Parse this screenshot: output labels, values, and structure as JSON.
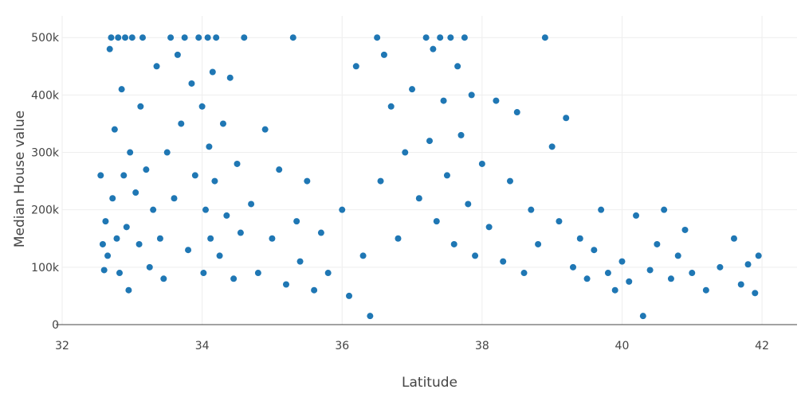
{
  "chart_data": {
    "type": "scatter",
    "xlabel": "Latitude",
    "ylabel": "Median House value",
    "xlim": [
      32,
      42.5
    ],
    "ylim": [
      0,
      510000
    ],
    "x_ticks": [
      {
        "value": 32,
        "label": "32"
      },
      {
        "value": 34,
        "label": "34"
      },
      {
        "value": 36,
        "label": "36"
      },
      {
        "value": 38,
        "label": "38"
      },
      {
        "value": 40,
        "label": "40"
      },
      {
        "value": 42,
        "label": "42"
      }
    ],
    "y_ticks": [
      {
        "value": 0,
        "label": "0"
      },
      {
        "value": 100000,
        "label": "100k"
      },
      {
        "value": 200000,
        "label": "200k"
      },
      {
        "value": 300000,
        "label": "300k"
      },
      {
        "value": 400000,
        "label": "400k"
      },
      {
        "value": 500000,
        "label": "500k"
      }
    ],
    "grid": true,
    "marker_color": "#1f77b4",
    "points": [
      [
        32.55,
        260000
      ],
      [
        32.58,
        140000
      ],
      [
        32.6,
        95000
      ],
      [
        32.62,
        180000
      ],
      [
        32.65,
        120000
      ],
      [
        32.68,
        480000
      ],
      [
        32.7,
        500000
      ],
      [
        32.72,
        220000
      ],
      [
        32.75,
        340000
      ],
      [
        32.78,
        150000
      ],
      [
        32.8,
        500000
      ],
      [
        32.82,
        90000
      ],
      [
        32.85,
        410000
      ],
      [
        32.88,
        260000
      ],
      [
        32.9,
        500000
      ],
      [
        32.92,
        170000
      ],
      [
        32.95,
        60000
      ],
      [
        32.97,
        300000
      ],
      [
        33.0,
        500000
      ],
      [
        33.05,
        230000
      ],
      [
        33.1,
        140000
      ],
      [
        33.12,
        380000
      ],
      [
        33.15,
        500000
      ],
      [
        33.2,
        270000
      ],
      [
        33.25,
        100000
      ],
      [
        33.3,
        200000
      ],
      [
        33.35,
        450000
      ],
      [
        33.4,
        150000
      ],
      [
        33.45,
        80000
      ],
      [
        33.5,
        300000
      ],
      [
        33.55,
        500000
      ],
      [
        33.6,
        220000
      ],
      [
        33.65,
        470000
      ],
      [
        33.7,
        350000
      ],
      [
        33.75,
        500000
      ],
      [
        33.8,
        130000
      ],
      [
        33.85,
        420000
      ],
      [
        33.9,
        260000
      ],
      [
        33.95,
        500000
      ],
      [
        34.0,
        380000
      ],
      [
        34.02,
        90000
      ],
      [
        34.05,
        200000
      ],
      [
        34.08,
        500000
      ],
      [
        34.1,
        310000
      ],
      [
        34.12,
        150000
      ],
      [
        34.15,
        440000
      ],
      [
        34.18,
        250000
      ],
      [
        34.2,
        500000
      ],
      [
        34.25,
        120000
      ],
      [
        34.3,
        350000
      ],
      [
        34.35,
        190000
      ],
      [
        34.4,
        430000
      ],
      [
        34.45,
        80000
      ],
      [
        34.5,
        280000
      ],
      [
        34.55,
        160000
      ],
      [
        34.6,
        500000
      ],
      [
        34.7,
        210000
      ],
      [
        34.8,
        90000
      ],
      [
        34.9,
        340000
      ],
      [
        35.0,
        150000
      ],
      [
        35.1,
        270000
      ],
      [
        35.2,
        70000
      ],
      [
        35.3,
        500000
      ],
      [
        35.35,
        180000
      ],
      [
        35.4,
        110000
      ],
      [
        35.5,
        250000
      ],
      [
        35.6,
        60000
      ],
      [
        35.7,
        160000
      ],
      [
        35.8,
        90000
      ],
      [
        36.0,
        200000
      ],
      [
        36.1,
        50000
      ],
      [
        36.2,
        450000
      ],
      [
        36.3,
        120000
      ],
      [
        36.4,
        15000
      ],
      [
        36.5,
        500000
      ],
      [
        36.55,
        250000
      ],
      [
        36.6,
        470000
      ],
      [
        36.7,
        380000
      ],
      [
        36.8,
        150000
      ],
      [
        36.9,
        300000
      ],
      [
        37.0,
        410000
      ],
      [
        37.1,
        220000
      ],
      [
        37.2,
        500000
      ],
      [
        37.25,
        320000
      ],
      [
        37.3,
        480000
      ],
      [
        37.35,
        180000
      ],
      [
        37.4,
        500000
      ],
      [
        37.45,
        390000
      ],
      [
        37.5,
        260000
      ],
      [
        37.55,
        500000
      ],
      [
        37.6,
        140000
      ],
      [
        37.65,
        450000
      ],
      [
        37.7,
        330000
      ],
      [
        37.75,
        500000
      ],
      [
        37.8,
        210000
      ],
      [
        37.85,
        400000
      ],
      [
        37.9,
        120000
      ],
      [
        38.0,
        280000
      ],
      [
        38.1,
        170000
      ],
      [
        38.2,
        390000
      ],
      [
        38.3,
        110000
      ],
      [
        38.4,
        250000
      ],
      [
        38.5,
        370000
      ],
      [
        38.6,
        90000
      ],
      [
        38.7,
        200000
      ],
      [
        38.8,
        140000
      ],
      [
        38.9,
        500000
      ],
      [
        39.0,
        310000
      ],
      [
        39.1,
        180000
      ],
      [
        39.2,
        360000
      ],
      [
        39.3,
        100000
      ],
      [
        39.4,
        150000
      ],
      [
        39.5,
        80000
      ],
      [
        39.6,
        130000
      ],
      [
        39.7,
        200000
      ],
      [
        39.8,
        90000
      ],
      [
        39.9,
        60000
      ],
      [
        40.0,
        110000
      ],
      [
        40.1,
        75000
      ],
      [
        40.2,
        190000
      ],
      [
        40.3,
        15000
      ],
      [
        40.4,
        95000
      ],
      [
        40.5,
        140000
      ],
      [
        40.6,
        200000
      ],
      [
        40.7,
        80000
      ],
      [
        40.8,
        120000
      ],
      [
        40.9,
        165000
      ],
      [
        41.0,
        90000
      ],
      [
        41.2,
        60000
      ],
      [
        41.4,
        100000
      ],
      [
        41.6,
        150000
      ],
      [
        41.7,
        70000
      ],
      [
        41.8,
        105000
      ],
      [
        41.9,
        55000
      ],
      [
        41.95,
        120000
      ]
    ]
  }
}
